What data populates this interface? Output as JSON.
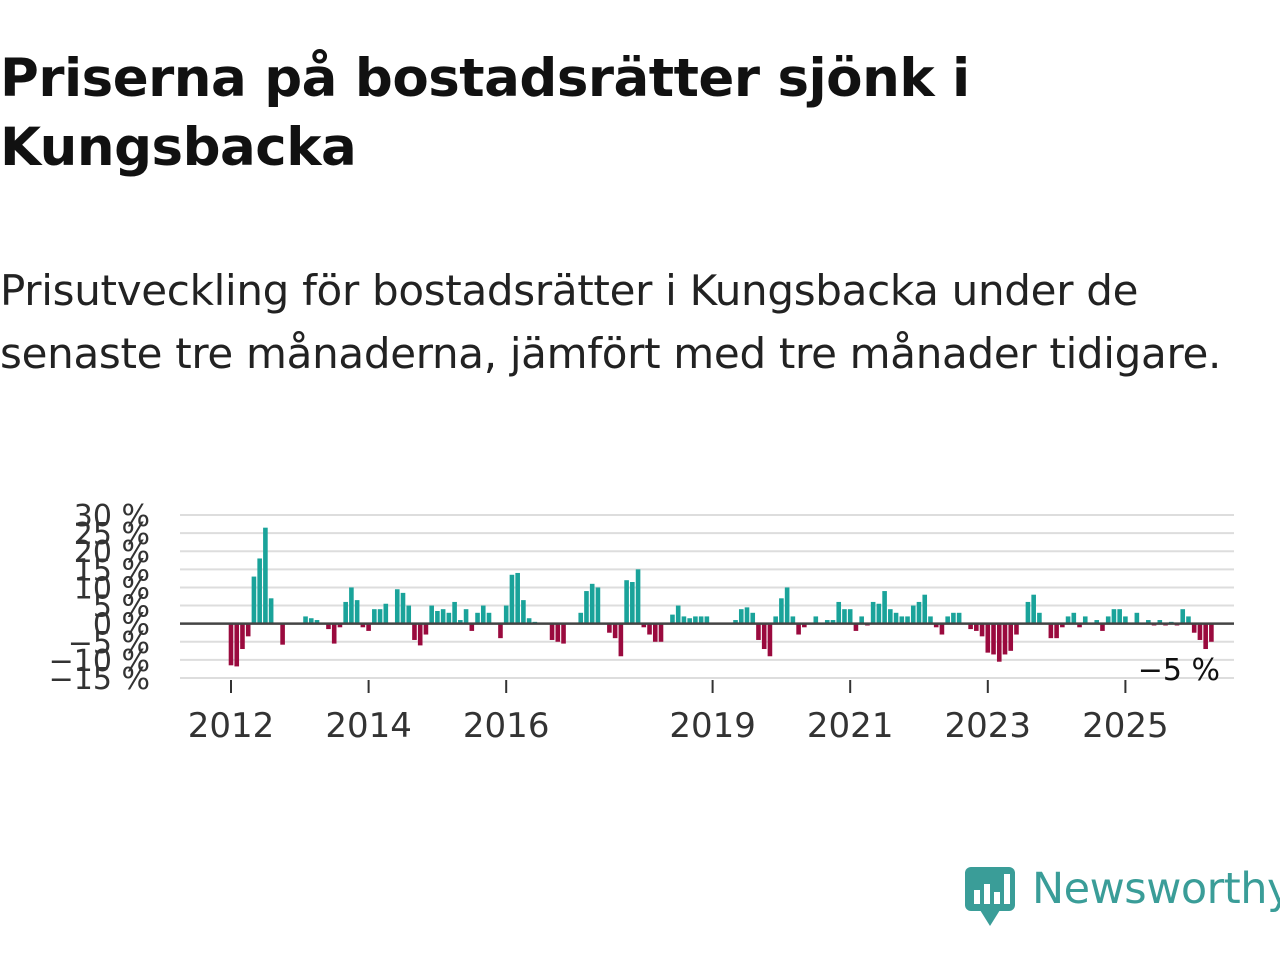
{
  "title": "Priserna på bostadsrätter sjönk i Kungsbacka",
  "subtitle": "Prisutveckling för bostadsrätter i Kungsbacka under de senaste tre månaderna, jämfört med tre månader tidigare.",
  "colors": {
    "positive": "#1aa39a",
    "negative": "#9a0a3e",
    "grid": "#dddddd",
    "zero": "#444444",
    "brand": "#3a9d98"
  },
  "logo": {
    "text": "Newsworthy",
    "icon": "newsworthy-chart-icon"
  },
  "chart_data": {
    "type": "bar",
    "title": "Priserna på bostadsrätter sjönk i Kungsbacka",
    "ylabel": "",
    "xlabel": "",
    "ylim": [
      -15,
      30
    ],
    "yticks": [
      -15,
      -10,
      -5,
      0,
      5,
      10,
      15,
      20,
      25,
      30
    ],
    "ytick_labels": [
      "−15 %",
      "−10 %",
      "−5 %",
      "0 %",
      "5 %",
      "10 %",
      "15 %",
      "20 %",
      "25 %",
      "30 %"
    ],
    "xticks": [
      2012,
      2014,
      2016,
      2019,
      2021,
      2023,
      2025
    ],
    "start_month": "2012-01",
    "value_suffix": " %",
    "last_label": "−5 %",
    "values": [
      -11.5,
      -11.8,
      -7.0,
      -3.5,
      13.0,
      18.0,
      26.5,
      7.0,
      0,
      -5.8,
      0,
      0,
      0,
      2.0,
      1.5,
      1.0,
      0,
      -1.5,
      -5.5,
      -1.0,
      6.0,
      10.0,
      6.5,
      -1.0,
      -2.0,
      4.0,
      4.0,
      5.5,
      0,
      9.5,
      8.5,
      5.0,
      -4.5,
      -6.0,
      -3.0,
      5.0,
      3.5,
      4.0,
      3.0,
      6.0,
      1.0,
      4.0,
      -2.0,
      3.0,
      5.0,
      3.0,
      0,
      -4.0,
      5.0,
      13.5,
      14.0,
      6.5,
      1.5,
      0.5,
      0,
      0,
      -4.5,
      -5.0,
      -5.5,
      0,
      0,
      3.0,
      9.0,
      11.0,
      10.0,
      0,
      -2.5,
      -4.0,
      -9.0,
      12.0,
      11.5,
      15.0,
      -1.0,
      -3.0,
      -5.0,
      -5.0,
      0,
      2.5,
      5.0,
      2.0,
      1.5,
      2.0,
      2.0,
      2.0,
      0,
      0,
      0,
      0,
      1.0,
      4.0,
      4.5,
      3.0,
      -4.5,
      -7.0,
      -9.0,
      2.0,
      7.0,
      10.0,
      2.0,
      -3.0,
      -1.0,
      0,
      2.0,
      0,
      1.0,
      1.0,
      6.0,
      4.0,
      4.0,
      -2.0,
      2.0,
      -0.5,
      6.0,
      5.5,
      9.0,
      4.0,
      3.0,
      2.0,
      2.0,
      5.0,
      6.0,
      8.0,
      2.0,
      -1.0,
      -3.0,
      2.0,
      3.0,
      3.0,
      0,
      -1.5,
      -2.0,
      -3.5,
      -8.0,
      -8.5,
      -10.5,
      -8.5,
      -7.5,
      -3.0,
      0,
      6.0,
      8.0,
      3.0,
      0,
      -4.0,
      -4.0,
      -1.0,
      2.0,
      3.0,
      -1.0,
      2.0,
      0,
      1.0,
      -2.0,
      2.0,
      4.0,
      4.0,
      2.0,
      0,
      3.0,
      0,
      1.0,
      -0.5,
      1.0,
      -0.5,
      0.5,
      -0.5,
      4.0,
      2.0,
      -2.5,
      -4.5,
      -7.0,
      -5.0
    ]
  }
}
